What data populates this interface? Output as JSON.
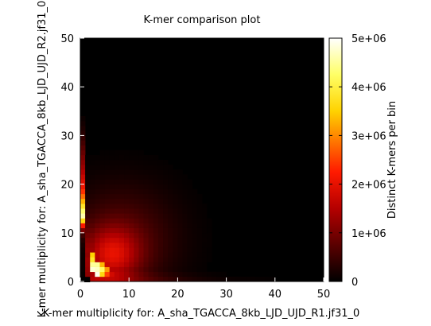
{
  "chart_data": {
    "type": "heatmap",
    "title": "K-mer comparison plot",
    "xlabel": "K-mer multiplicity for: A_sha_TGACCA_8kb_LJD_UJD_R1.jf31_0",
    "ylabel": "K-mer multiplicity for: A_sha_TGACCA_8kb_LJD_UJD_R2.jf31_0",
    "colorbar_label": "Distinct K-mers per bin",
    "xlim": [
      0,
      50
    ],
    "ylim": [
      0,
      50
    ],
    "clim": [
      0,
      5000000
    ],
    "x_ticks": [
      "0",
      "10",
      "20",
      "30",
      "40",
      "50"
    ],
    "y_ticks": [
      "0",
      "10",
      "20",
      "30",
      "40",
      "50"
    ],
    "colorbar_ticks": [
      "0",
      "1e+06",
      "2e+06",
      "3e+06",
      "4e+06",
      "5e+06"
    ],
    "colorbar_tick_values": [
      0,
      1000000,
      2000000,
      3000000,
      4000000,
      5000000
    ],
    "bin_size": 1,
    "colormap": "black-red-yellow-white (gnuplot hot)",
    "grid": false,
    "description_of_density": "Counts concentrated at low multiplicity along both axes; diagonal peak near (3-8, 3-8); column x=0 bright for y=12-22; row y=0 dark-red band for x up to ~40",
    "cells": [
      {
        "x": 0,
        "y": 13,
        "v": 4600000
      },
      {
        "x": 0,
        "y": 14,
        "v": 4300000
      },
      {
        "x": 0,
        "y": 15,
        "v": 3800000
      },
      {
        "x": 0,
        "y": 16,
        "v": 3300000
      },
      {
        "x": 0,
        "y": 17,
        "v": 2800000
      },
      {
        "x": 0,
        "y": 18,
        "v": 2400000
      },
      {
        "x": 0,
        "y": 19,
        "v": 2100000
      },
      {
        "x": 0,
        "y": 20,
        "v": 1900000
      },
      {
        "x": 0,
        "y": 21,
        "v": 1700000
      },
      {
        "x": 0,
        "y": 22,
        "v": 1500000
      },
      {
        "x": 0,
        "y": 23,
        "v": 1300000
      },
      {
        "x": 0,
        "y": 24,
        "v": 1150000
      },
      {
        "x": 0,
        "y": 25,
        "v": 1000000
      },
      {
        "x": 0,
        "y": 26,
        "v": 850000
      },
      {
        "x": 0,
        "y": 27,
        "v": 700000
      },
      {
        "x": 0,
        "y": 28,
        "v": 560000
      },
      {
        "x": 0,
        "y": 29,
        "v": 430000
      },
      {
        "x": 0,
        "y": 30,
        "v": 320000
      },
      {
        "x": 0,
        "y": 31,
        "v": 230000
      },
      {
        "x": 0,
        "y": 32,
        "v": 160000
      },
      {
        "x": 0,
        "y": 33,
        "v": 100000
      },
      {
        "x": 0,
        "y": 12,
        "v": 3600000
      },
      {
        "x": 0,
        "y": 11,
        "v": 2200000
      },
      {
        "x": 0,
        "y": 10,
        "v": 1000000
      },
      {
        "x": 0,
        "y": 9,
        "v": 500000
      },
      {
        "x": 0,
        "y": 8,
        "v": 300000
      },
      {
        "x": 0,
        "y": 7,
        "v": 200000
      },
      {
        "x": 0,
        "y": 6,
        "v": 150000
      },
      {
        "x": 0,
        "y": 5,
        "v": 120000
      },
      {
        "x": 0,
        "y": 4,
        "v": 100000
      },
      {
        "x": 0,
        "y": 3,
        "v": 90000
      },
      {
        "x": 0,
        "y": 2,
        "v": 80000
      },
      {
        "x": 0,
        "y": 1,
        "v": 60000
      },
      {
        "x": 0,
        "y": 0,
        "v": 0
      },
      {
        "x": 1,
        "y": 0,
        "v": 0
      },
      {
        "x": 2,
        "y": 2,
        "v": 4800000
      },
      {
        "x": 3,
        "y": 1,
        "v": 4900000
      },
      {
        "x": 2,
        "y": 3,
        "v": 4500000
      },
      {
        "x": 3,
        "y": 2,
        "v": 4700000
      },
      {
        "x": 2,
        "y": 4,
        "v": 3800000
      },
      {
        "x": 3,
        "y": 3,
        "v": 4500000
      },
      {
        "x": 4,
        "y": 2,
        "v": 4200000
      },
      {
        "x": 4,
        "y": 1,
        "v": 3600000
      },
      {
        "x": 1,
        "y": 5,
        "v": 1200000
      },
      {
        "x": 2,
        "y": 5,
        "v": 3500000
      },
      {
        "x": 4,
        "y": 3,
        "v": 3300000
      },
      {
        "x": 5,
        "y": 2,
        "v": 3100000
      },
      {
        "x": 5,
        "y": 1,
        "v": 2500000
      },
      {
        "x": 6,
        "y": 1,
        "v": 1800000
      }
    ]
  }
}
